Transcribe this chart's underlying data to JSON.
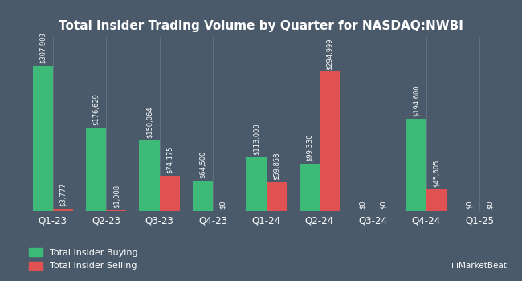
{
  "title": "Total Insider Trading Volume by Quarter for NASDAQ:NWBI",
  "quarters": [
    "Q1-23",
    "Q2-23",
    "Q3-23",
    "Q4-23",
    "Q1-24",
    "Q2-24",
    "Q3-24",
    "Q4-24",
    "Q1-25"
  ],
  "buying": [
    307903,
    176629,
    150064,
    64500,
    113000,
    99330,
    0,
    194600,
    0
  ],
  "selling": [
    3777,
    1008,
    74175,
    0,
    59858,
    294999,
    0,
    45605,
    0
  ],
  "buying_labels": [
    "$307,903",
    "$176,629",
    "$150,064",
    "$64,500",
    "$113,000",
    "$99,330",
    "$0",
    "$194,600",
    "$0"
  ],
  "selling_labels": [
    "$3,777",
    "$1,008",
    "$74,175",
    "$0",
    "$59,858",
    "$294,999",
    "$0",
    "$45,605",
    "$0"
  ],
  "buy_color": "#3dba78",
  "sell_color": "#e05252",
  "background_color": "#4a5a6a",
  "text_color": "#ffffff",
  "bar_width": 0.38,
  "legend_buy": "Total Insider Buying",
  "legend_sell": "Total Insider Selling",
  "ylim": [
    0,
    370000
  ]
}
